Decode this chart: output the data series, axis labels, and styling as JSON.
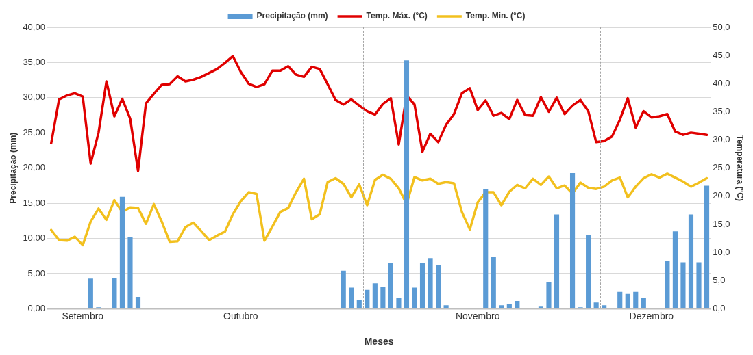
{
  "chart_data": {
    "type": "bar",
    "xlabel": "Meses",
    "ylabel": "Precipitação (mm)",
    "y2label": "Temperatura (°C)",
    "categories": [
      null,
      null,
      null,
      null,
      "Setembro",
      null,
      null,
      null,
      null,
      null,
      null,
      null,
      null,
      null,
      null,
      null,
      null,
      null,
      null,
      null,
      null,
      null,
      null,
      null,
      "Outubro",
      null,
      null,
      null,
      null,
      null,
      null,
      null,
      null,
      null,
      null,
      null,
      null,
      null,
      null,
      null,
      null,
      null,
      null,
      null,
      null,
      null,
      null,
      null,
      null,
      null,
      null,
      null,
      null,
      null,
      "Novembro",
      null,
      null,
      null,
      null,
      null,
      null,
      null,
      null,
      null,
      null,
      null,
      null,
      null,
      null,
      null,
      null,
      null,
      null,
      null,
      null,
      null,
      "Dezembro",
      null,
      null,
      null,
      null,
      null,
      null,
      null
    ],
    "ylim": [
      0,
      40
    ],
    "yticks": [
      {
        "value": 0,
        "label": "0,00"
      },
      {
        "value": 5,
        "label": "5,00"
      },
      {
        "value": 10,
        "label": "10,00"
      },
      {
        "value": 15,
        "label": "15,00"
      },
      {
        "value": 20,
        "label": "20,00"
      },
      {
        "value": 25,
        "label": "25,00"
      },
      {
        "value": 30,
        "label": "30,00"
      },
      {
        "value": 35,
        "label": "35,00"
      },
      {
        "value": 40,
        "label": "40,00"
      }
    ],
    "y2lim": [
      0,
      50
    ],
    "y2ticks": [
      {
        "value": 0,
        "label": "0,0"
      },
      {
        "value": 5,
        "label": "5,0"
      },
      {
        "value": 10,
        "label": "10,0"
      },
      {
        "value": 15,
        "label": "15,0"
      },
      {
        "value": 20,
        "label": "20,0"
      },
      {
        "value": 25,
        "label": "25,0"
      },
      {
        "value": 30,
        "label": "30,0"
      },
      {
        "value": 35,
        "label": "35,0"
      },
      {
        "value": 40,
        "label": "40,0"
      },
      {
        "value": 45,
        "label": "45,0"
      },
      {
        "value": 50,
        "label": "50,0"
      }
    ],
    "series": [
      {
        "name": "Precipitação (mm)",
        "color": "#5b9bd5",
        "values": [
          0,
          0,
          0,
          0,
          0,
          4.3,
          0.2,
          0,
          4.4,
          15.9,
          10.2,
          1.7,
          0,
          0,
          0,
          0,
          0,
          0,
          0,
          0,
          0,
          0,
          0,
          0,
          0,
          0,
          0,
          0,
          0,
          0,
          0,
          0,
          0,
          0,
          0,
          0,
          0,
          5.4,
          3.0,
          1.3,
          2.7,
          3.6,
          3.1,
          6.5,
          1.5,
          35.3,
          3.0,
          6.5,
          7.2,
          6.2,
          0.5,
          0,
          0,
          0,
          0,
          17.0,
          7.4,
          0.5,
          0.7,
          1.1,
          0,
          0,
          0.3,
          3.8,
          13.4,
          0,
          19.3,
          0.2,
          10.5,
          0.9,
          0.5,
          0,
          2.4,
          2.1,
          2.4,
          1.6,
          0,
          0,
          6.8,
          11.0,
          6.6,
          13.4,
          6.6,
          17.5
        ]
      },
      {
        "name": "Temp. Máx. (°C)",
        "type": "line",
        "axis": "y2",
        "color": "#e00000",
        "values": [
          29.4,
          37.2,
          37.9,
          38.3,
          37.7,
          25.8,
          31.3,
          40.4,
          34.2,
          37.3,
          33.8,
          24.5,
          36.5,
          38.2,
          39.8,
          39.9,
          41.3,
          40.4,
          40.7,
          41.2,
          41.9,
          42.6,
          43.7,
          44.9,
          42.1,
          40.0,
          39.4,
          39.9,
          42.3,
          42.3,
          43.1,
          41.6,
          41.2,
          43.0,
          42.6,
          39.9,
          37.1,
          36.3,
          37.2,
          36.1,
          35.1,
          34.5,
          36.4,
          37.4,
          29.2,
          37.9,
          36.3,
          27.9,
          31.1,
          29.6,
          32.7,
          34.6,
          38.3,
          39.2,
          35.3,
          37.0,
          34.3,
          34.8,
          33.7,
          37.1,
          34.4,
          34.3,
          37.6,
          35.0,
          37.5,
          34.6,
          36.1,
          37.1,
          35.1,
          29.6,
          29.8,
          30.6,
          33.6,
          37.4,
          32.2,
          35.1,
          34.0,
          34.2,
          34.6,
          31.5,
          30.9,
          31.3,
          31.1,
          30.9
        ]
      },
      {
        "name": "Temp. Min. (°C)",
        "type": "line",
        "axis": "y2",
        "color": "#f2c01e",
        "values": [
          14.0,
          12.2,
          12.1,
          12.8,
          11.3,
          15.5,
          17.8,
          15.8,
          19.3,
          17.2,
          18.0,
          17.9,
          15.1,
          18.6,
          15.5,
          11.9,
          12.0,
          14.5,
          15.3,
          13.8,
          12.2,
          13.0,
          13.7,
          16.8,
          19.1,
          20.7,
          20.4,
          12.1,
          14.6,
          17.2,
          17.9,
          20.7,
          23.1,
          15.9,
          16.8,
          22.5,
          23.2,
          22.2,
          19.8,
          22.1,
          18.4,
          22.9,
          23.8,
          23.1,
          21.4,
          18.6,
          23.4,
          22.8,
          23.1,
          22.2,
          22.5,
          22.3,
          17.2,
          14.1,
          18.9,
          20.7,
          20.7,
          18.4,
          20.8,
          22.0,
          21.4,
          23.1,
          22.0,
          23.5,
          21.4,
          21.9,
          20.5,
          22.4,
          21.5,
          21.3,
          21.7,
          22.8,
          23.3,
          19.8,
          21.7,
          23.2,
          23.9,
          23.3,
          24.0,
          23.3,
          22.6,
          21.7,
          22.4,
          23.2
        ]
      }
    ],
    "grid": "y",
    "legend": "top"
  }
}
